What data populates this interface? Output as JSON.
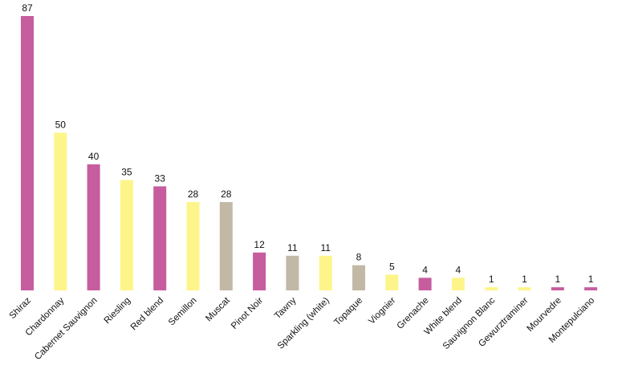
{
  "chart_data": {
    "type": "bar",
    "categories": [
      "Shiraz",
      "Chardonnay",
      "Cabernet Sauvignon",
      "Riesling",
      "Red blend",
      "Semillon",
      "Muscat",
      "Pinot Noir",
      "Tawny",
      "Sparkling (white)",
      "Topaque",
      "Viognier",
      "Grenache",
      "White blend",
      "Sauvignon Blanc",
      "Gewurztraminer",
      "Mourvedre",
      "Montepulciano"
    ],
    "values": [
      87,
      50,
      40,
      35,
      33,
      28,
      28,
      12,
      11,
      11,
      8,
      5,
      4,
      4,
      1,
      1,
      1,
      1
    ],
    "bar_colors": [
      "#c65d9e",
      "#fdf58a",
      "#c65d9e",
      "#fdf58a",
      "#c65d9e",
      "#fdf58a",
      "#c2b8a6",
      "#c65d9e",
      "#c2b8a6",
      "#fdf58a",
      "#c2b8a6",
      "#fdf58a",
      "#c65d9e",
      "#fdf58a",
      "#fdf58a",
      "#fdf58a",
      "#c65d9e",
      "#c65d9e"
    ],
    "title": "",
    "xlabel": "",
    "ylabel": "",
    "ylim": [
      0,
      87
    ],
    "grid": false,
    "data_labels": true
  }
}
